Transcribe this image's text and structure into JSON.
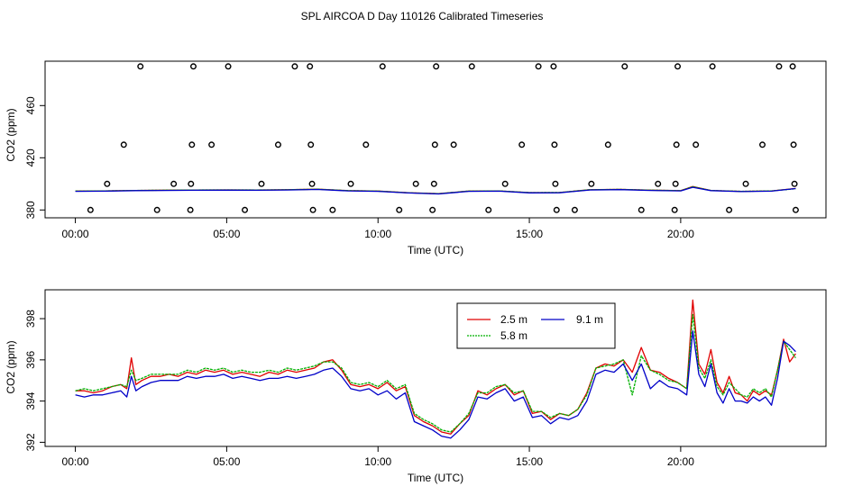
{
  "title": "SPL AIRCOA D  Day 110126  Calibrated Timeseries",
  "chart_data": [
    {
      "type": "scatter",
      "name": "flags-panel",
      "xlabel": "Time (UTC)",
      "ylabel": "CO2 (ppm)",
      "xlim": [
        -1.0,
        24.8
      ],
      "ylim": [
        374,
        494
      ],
      "xticks": [
        0,
        5,
        10,
        15,
        20
      ],
      "xtick_labels": [
        "00:00",
        "05:00",
        "10:00",
        "15:00",
        "20:00"
      ],
      "yticks": [
        380,
        420,
        460
      ],
      "ytick_labels": [
        "380",
        "420",
        "460"
      ],
      "scatter_points": {
        "x": [
          0.5,
          1.05,
          1.6,
          2.15,
          2.7,
          3.25,
          3.8,
          3.82,
          3.85,
          3.9,
          4.5,
          5.05,
          5.6,
          6.15,
          6.7,
          7.25,
          7.75,
          7.78,
          7.82,
          7.85,
          8.5,
          9.1,
          9.6,
          10.15,
          10.7,
          11.25,
          11.8,
          11.85,
          11.88,
          11.92,
          12.5,
          13.1,
          13.65,
          14.2,
          14.75,
          15.3,
          15.8,
          15.83,
          15.86,
          15.9,
          16.5,
          17.05,
          17.6,
          18.15,
          18.7,
          19.25,
          19.8,
          19.83,
          19.86,
          19.9,
          20.5,
          21.05,
          21.6,
          22.15,
          22.7,
          23.25,
          23.7,
          23.73,
          23.76,
          23.8
        ],
        "y": [
          380,
          400,
          430,
          490,
          380,
          400,
          380,
          400,
          430,
          490,
          430,
          490,
          380,
          400,
          430,
          490,
          490,
          430,
          400,
          380,
          380,
          400,
          430,
          490,
          380,
          400,
          380,
          400,
          430,
          490,
          430,
          490,
          380,
          400,
          430,
          490,
          490,
          430,
          400,
          380,
          380,
          400,
          430,
          490,
          380,
          400,
          380,
          400,
          430,
          490,
          430,
          490,
          380,
          400,
          430,
          490,
          490,
          430,
          400,
          380
        ]
      },
      "series": [
        {
          "name": "2.5 m",
          "color": "#e00000",
          "x": [
            0,
            1,
            2,
            3,
            4,
            5,
            6,
            7,
            8,
            9,
            10,
            11,
            12,
            13,
            14,
            15,
            16,
            17,
            18,
            19,
            20,
            20.4,
            21,
            22,
            23,
            23.8
          ],
          "y": [
            394.5,
            394.6,
            395.0,
            395.2,
            395.3,
            395.4,
            395.3,
            395.5,
            395.9,
            394.8,
            394.5,
            393.2,
            392.5,
            394.5,
            394.6,
            393.3,
            393.4,
            395.5,
            395.8,
            395.2,
            394.8,
            398.0,
            395.0,
            394.3,
            394.6,
            396.5
          ]
        },
        {
          "name": "5.8 m",
          "color": "#00b000",
          "x": [
            0,
            1,
            2,
            3,
            4,
            5,
            6,
            7,
            8,
            9,
            10,
            11,
            12,
            13,
            14,
            15,
            16,
            17,
            18,
            19,
            20,
            20.4,
            21,
            22,
            23,
            23.8
          ],
          "y": [
            394.5,
            394.6,
            395.0,
            395.2,
            395.3,
            395.4,
            395.3,
            395.5,
            395.9,
            394.8,
            394.5,
            393.2,
            392.5,
            394.5,
            394.6,
            393.3,
            393.4,
            395.5,
            395.8,
            395.2,
            394.8,
            397.8,
            395.0,
            394.3,
            394.6,
            396.3
          ]
        },
        {
          "name": "9.1 m",
          "color": "#0000c8",
          "x": [
            0,
            1,
            2,
            3,
            4,
            5,
            6,
            7,
            8,
            9,
            10,
            11,
            12,
            13,
            14,
            15,
            16,
            17,
            18,
            19,
            20,
            20.4,
            21,
            22,
            23,
            23.8
          ],
          "y": [
            394.3,
            394.4,
            394.8,
            395.0,
            395.1,
            395.2,
            395.1,
            395.3,
            395.7,
            394.6,
            394.3,
            393.0,
            392.3,
            394.3,
            394.4,
            393.1,
            393.2,
            395.3,
            395.6,
            395.0,
            394.6,
            397.4,
            394.8,
            394.1,
            394.4,
            396.4
          ]
        }
      ]
    },
    {
      "type": "line",
      "name": "timeseries-panel",
      "xlabel": "Time (UTC)",
      "ylabel": "CO2 (ppm)",
      "xlim": [
        -1.0,
        24.8
      ],
      "ylim": [
        391.8,
        399.4
      ],
      "xticks": [
        0,
        5,
        10,
        15,
        20
      ],
      "xtick_labels": [
        "00:00",
        "05:00",
        "10:00",
        "15:00",
        "20:00"
      ],
      "yticks": [
        392,
        394,
        396,
        398
      ],
      "ytick_labels": [
        "392",
        "394",
        "396",
        "398"
      ],
      "legend": {
        "position": "top-center",
        "entries": [
          "2.5 m",
          "9.1 m",
          "5.8 m"
        ]
      },
      "series": [
        {
          "name": "2.5 m",
          "color": "#e00000",
          "x": [
            0.0,
            0.3,
            0.6,
            0.9,
            1.2,
            1.5,
            1.7,
            1.85,
            2.0,
            2.2,
            2.5,
            2.8,
            3.1,
            3.4,
            3.7,
            4.0,
            4.3,
            4.6,
            4.9,
            5.2,
            5.5,
            5.8,
            6.1,
            6.4,
            6.7,
            7.0,
            7.3,
            7.6,
            7.9,
            8.2,
            8.5,
            8.8,
            9.1,
            9.4,
            9.7,
            10.0,
            10.3,
            10.6,
            10.9,
            11.2,
            11.5,
            11.8,
            12.1,
            12.4,
            12.7,
            13.0,
            13.3,
            13.6,
            13.9,
            14.2,
            14.5,
            14.8,
            15.1,
            15.4,
            15.7,
            16.0,
            16.3,
            16.6,
            16.9,
            17.2,
            17.5,
            17.8,
            18.1,
            18.4,
            18.7,
            19.0,
            19.3,
            19.6,
            19.9,
            20.2,
            20.4,
            20.6,
            20.8,
            21.0,
            21.2,
            21.4,
            21.6,
            21.8,
            22.0,
            22.2,
            22.4,
            22.6,
            22.8,
            23.0,
            23.2,
            23.4,
            23.6,
            23.8
          ],
          "y": [
            394.5,
            394.5,
            394.4,
            394.5,
            394.7,
            394.8,
            394.6,
            396.1,
            394.8,
            395.0,
            395.2,
            395.2,
            395.3,
            395.2,
            395.4,
            395.3,
            395.5,
            395.4,
            395.5,
            395.3,
            395.4,
            395.3,
            395.2,
            395.4,
            395.3,
            395.5,
            395.4,
            395.5,
            395.6,
            395.9,
            396.0,
            395.5,
            394.8,
            394.7,
            394.8,
            394.6,
            394.9,
            394.5,
            394.7,
            393.3,
            393.0,
            392.8,
            392.5,
            392.4,
            392.9,
            393.3,
            394.5,
            394.3,
            394.6,
            394.8,
            394.3,
            394.5,
            393.4,
            393.5,
            393.1,
            393.4,
            393.3,
            393.6,
            394.4,
            395.6,
            395.8,
            395.7,
            396.0,
            395.4,
            396.6,
            395.5,
            395.4,
            395.1,
            394.9,
            394.6,
            398.9,
            395.8,
            395.3,
            396.5,
            394.9,
            394.4,
            395.2,
            394.4,
            394.3,
            394.0,
            394.5,
            394.3,
            394.5,
            394.3,
            395.5,
            397.0,
            395.9,
            396.3
          ]
        },
        {
          "name": "5.8 m",
          "color": "#00b000",
          "x": [
            0.0,
            0.3,
            0.6,
            0.9,
            1.2,
            1.5,
            1.7,
            1.85,
            2.0,
            2.2,
            2.5,
            2.8,
            3.1,
            3.4,
            3.7,
            4.0,
            4.3,
            4.6,
            4.9,
            5.2,
            5.5,
            5.8,
            6.1,
            6.4,
            6.7,
            7.0,
            7.3,
            7.6,
            7.9,
            8.2,
            8.5,
            8.8,
            9.1,
            9.4,
            9.7,
            10.0,
            10.3,
            10.6,
            10.9,
            11.2,
            11.5,
            11.8,
            12.1,
            12.4,
            12.7,
            13.0,
            13.3,
            13.6,
            13.9,
            14.2,
            14.5,
            14.8,
            15.1,
            15.4,
            15.7,
            16.0,
            16.3,
            16.6,
            16.9,
            17.2,
            17.5,
            17.8,
            18.1,
            18.4,
            18.7,
            19.0,
            19.3,
            19.6,
            19.9,
            20.2,
            20.4,
            20.6,
            20.8,
            21.0,
            21.2,
            21.4,
            21.6,
            21.8,
            22.0,
            22.2,
            22.4,
            22.6,
            22.8,
            23.0,
            23.2,
            23.4,
            23.6,
            23.8
          ],
          "y": [
            394.5,
            394.6,
            394.5,
            394.6,
            394.7,
            394.8,
            394.7,
            395.5,
            395.0,
            395.1,
            395.3,
            395.3,
            395.3,
            395.3,
            395.5,
            395.4,
            395.6,
            395.5,
            395.6,
            395.4,
            395.5,
            395.4,
            395.4,
            395.5,
            395.4,
            395.6,
            395.5,
            395.6,
            395.7,
            395.9,
            395.9,
            395.6,
            394.9,
            394.8,
            394.9,
            394.7,
            395.0,
            394.6,
            394.8,
            393.4,
            393.1,
            392.9,
            392.6,
            392.5,
            392.9,
            393.4,
            394.4,
            394.4,
            394.7,
            394.8,
            394.4,
            394.5,
            393.5,
            393.5,
            393.2,
            393.4,
            393.3,
            393.6,
            394.3,
            395.6,
            395.7,
            395.8,
            396.0,
            394.3,
            396.2,
            395.5,
            395.3,
            395.0,
            394.9,
            394.6,
            398.2,
            395.6,
            395.1,
            396.0,
            394.7,
            394.3,
            394.9,
            394.6,
            394.3,
            394.2,
            394.6,
            394.4,
            394.6,
            394.2,
            395.5,
            396.9,
            396.5,
            396.1
          ]
        },
        {
          "name": "9.1 m",
          "color": "#0000c8",
          "x": [
            0.0,
            0.3,
            0.6,
            0.9,
            1.2,
            1.5,
            1.7,
            1.85,
            2.0,
            2.2,
            2.5,
            2.8,
            3.1,
            3.4,
            3.7,
            4.0,
            4.3,
            4.6,
            4.9,
            5.2,
            5.5,
            5.8,
            6.1,
            6.4,
            6.7,
            7.0,
            7.3,
            7.6,
            7.9,
            8.2,
            8.5,
            8.8,
            9.1,
            9.4,
            9.7,
            10.0,
            10.3,
            10.6,
            10.9,
            11.2,
            11.5,
            11.8,
            12.1,
            12.4,
            12.7,
            13.0,
            13.3,
            13.6,
            13.9,
            14.2,
            14.5,
            14.8,
            15.1,
            15.4,
            15.7,
            16.0,
            16.3,
            16.6,
            16.9,
            17.2,
            17.5,
            17.8,
            18.1,
            18.4,
            18.7,
            19.0,
            19.3,
            19.6,
            19.9,
            20.2,
            20.4,
            20.6,
            20.8,
            21.0,
            21.2,
            21.4,
            21.6,
            21.8,
            22.0,
            22.2,
            22.4,
            22.6,
            22.8,
            23.0,
            23.2,
            23.4,
            23.6,
            23.8
          ],
          "y": [
            394.3,
            394.2,
            394.3,
            394.3,
            394.4,
            394.5,
            394.2,
            395.2,
            394.5,
            394.7,
            394.9,
            395.0,
            395.0,
            395.0,
            395.2,
            395.1,
            395.2,
            395.2,
            395.3,
            395.1,
            395.2,
            395.1,
            395.0,
            395.1,
            395.1,
            395.2,
            395.1,
            395.2,
            395.3,
            395.5,
            395.6,
            395.2,
            394.6,
            394.5,
            394.6,
            394.3,
            394.5,
            394.1,
            394.4,
            393.0,
            392.8,
            392.6,
            392.3,
            392.2,
            392.6,
            393.1,
            394.2,
            394.1,
            394.4,
            394.6,
            394.0,
            394.2,
            393.2,
            393.3,
            392.9,
            393.2,
            393.1,
            393.3,
            394.0,
            395.3,
            395.5,
            395.4,
            395.8,
            395.0,
            395.8,
            394.6,
            395.0,
            394.7,
            394.6,
            394.3,
            397.4,
            395.3,
            394.7,
            395.8,
            394.4,
            393.9,
            394.6,
            394.0,
            394.0,
            393.9,
            394.2,
            394.0,
            394.2,
            393.8,
            395.1,
            396.9,
            396.7,
            396.4
          ]
        }
      ]
    }
  ]
}
